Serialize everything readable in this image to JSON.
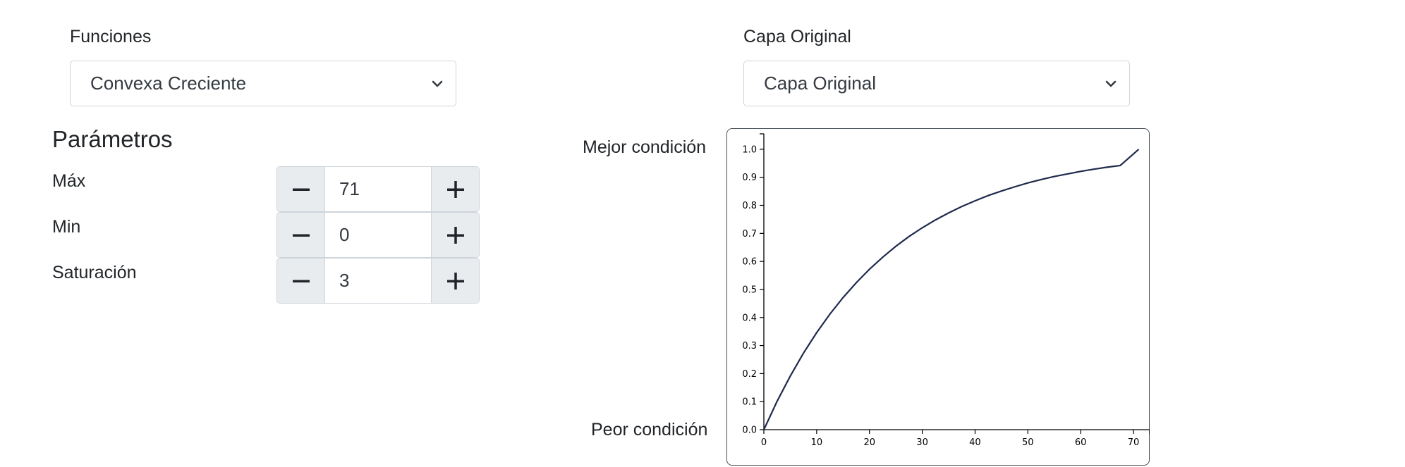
{
  "funciones": {
    "label": "Funciones",
    "selected": "Convexa Creciente"
  },
  "capa": {
    "label": "Capa Original",
    "selected": "Capa Original"
  },
  "parametros": {
    "title": "Parámetros",
    "items": [
      {
        "label": "Máx",
        "value": "71"
      },
      {
        "label": "Min",
        "value": "0"
      },
      {
        "label": "Saturación",
        "value": "3"
      }
    ]
  },
  "chart": {
    "best_label": "Mejor condición",
    "worst_label": "Peor condición"
  },
  "colors": {
    "curve": "#1f2a4d",
    "axis": "#000000"
  },
  "icons": {
    "select_chevron": "chevron-down-icon",
    "minus": "minus-icon",
    "plus": "plus-icon"
  },
  "chart_data": {
    "type": "line",
    "xlim": [
      0,
      72
    ],
    "ylim": [
      0,
      1.05
    ],
    "x_ticks": [
      0,
      10,
      20,
      30,
      40,
      50,
      60,
      70
    ],
    "y_ticks": [
      0.0,
      0.1,
      0.2,
      0.3,
      0.4,
      0.5,
      0.6,
      0.7,
      0.8,
      0.9,
      1.0
    ],
    "grid": false,
    "x": [
      0,
      2.5,
      5,
      7.5,
      10,
      12.5,
      15,
      17.5,
      20,
      22.5,
      25,
      27.5,
      30,
      32.5,
      35,
      37.5,
      40,
      42.5,
      45,
      47.5,
      50,
      52.5,
      55,
      57.5,
      60,
      62.5,
      65,
      67.5,
      71
    ],
    "y": [
      0.0,
      0.101,
      0.191,
      0.273,
      0.346,
      0.412,
      0.471,
      0.524,
      0.572,
      0.615,
      0.654,
      0.689,
      0.72,
      0.748,
      0.773,
      0.796,
      0.816,
      0.835,
      0.851,
      0.866,
      0.88,
      0.892,
      0.903,
      0.912,
      0.921,
      0.929,
      0.936,
      0.942,
      1.0
    ]
  }
}
